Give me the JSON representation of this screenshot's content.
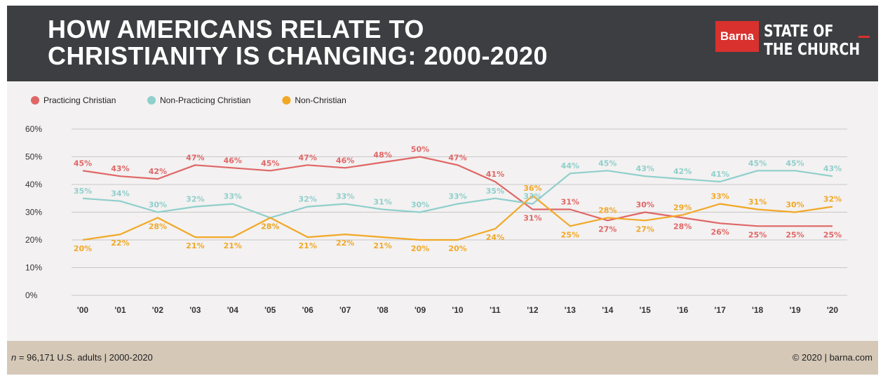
{
  "header": {
    "title_line1": "HOW AMERICANS RELATE TO",
    "title_line2": "CHRISTIANITY IS CHANGING: 2000-2020",
    "logo_word": "Barna",
    "brand_line1": "STATE OF",
    "brand_line2": "THE CHURCH",
    "background": "#3d3e41",
    "logo_color": "#d9312e"
  },
  "footer": {
    "n_label": "n",
    "n_text": " = 96,171 U.S. adults | 2000-2020",
    "copyright": "© 2020 | barna.com"
  },
  "chart_data": {
    "type": "line",
    "title": "",
    "xlabel": "",
    "ylabel": "",
    "categories": [
      "'00",
      "'01",
      "'02",
      "'03",
      "'04",
      "'05",
      "'06",
      "'07",
      "'08",
      "'09",
      "'10",
      "'11",
      "'12",
      "'13",
      "'14",
      "'15",
      "'16",
      "'17",
      "'18",
      "'19",
      "'20"
    ],
    "yticks": [
      "0%",
      "10%",
      "20%",
      "30%",
      "40%",
      "50%",
      "60%"
    ],
    "ylim": [
      0,
      60
    ],
    "grid": true,
    "legend_position": "top-left",
    "series": [
      {
        "name": "Practicing Christian",
        "color": "#e06666",
        "values": [
          45,
          43,
          42,
          47,
          46,
          45,
          47,
          46,
          48,
          50,
          47,
          41,
          31,
          31,
          27,
          30,
          28,
          26,
          25,
          25,
          25
        ],
        "labels": [
          "45%",
          "43%",
          "42%",
          "47%",
          "46%",
          "45%",
          "47%",
          "46%",
          "48%",
          "50%",
          "47%",
          "41%",
          "31%",
          "31%",
          "27%",
          "30%",
          "28%",
          "26%",
          "25%",
          "25%",
          "25%"
        ]
      },
      {
        "name": "Non-Practicing Christian",
        "color": "#8fcfcc",
        "values": [
          35,
          34,
          30,
          32,
          33,
          28,
          32,
          33,
          31,
          30,
          33,
          35,
          33,
          44,
          45,
          43,
          42,
          41,
          45,
          45,
          43
        ],
        "labels": [
          "35%",
          "34%",
          "30%",
          "32%",
          "33%",
          "28%",
          "32%",
          "33%",
          "31%",
          "30%",
          "33%",
          "35%",
          "33%",
          "44%",
          "45%",
          "43%",
          "42%",
          "41%",
          "45%",
          "45%",
          "43%"
        ]
      },
      {
        "name": "Non-Christian",
        "color": "#f1a827",
        "values": [
          20,
          22,
          28,
          21,
          21,
          28,
          21,
          22,
          21,
          20,
          20,
          24,
          36,
          25,
          28,
          27,
          29,
          33,
          31,
          30,
          32
        ],
        "labels": [
          "20%",
          "22%",
          "28%",
          "21%",
          "21%",
          "28%",
          "21%",
          "22%",
          "21%",
          "20%",
          "20%",
          "24%",
          "36%",
          "25%",
          "28%",
          "27%",
          "29%",
          "33%",
          "31%",
          "30%",
          "32%"
        ]
      }
    ]
  }
}
